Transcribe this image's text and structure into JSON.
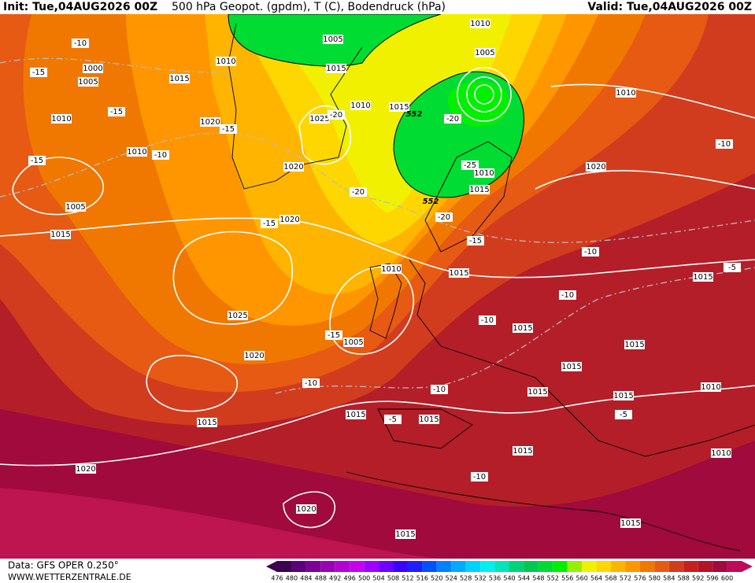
{
  "header": {
    "init": "Init: Tue,04AUG2026 00Z",
    "title": "500 hPa Geopot. (gpdm), T (C), Bodendruck (hPa)",
    "valid": "Valid: Tue,04AUG2026 00Z"
  },
  "footer": {
    "data": "Data: GFS OPER 0.250°",
    "website": "WWW.WETTERZENTRALE.DE"
  },
  "isobar_labels": [
    1010,
    1005,
    1010,
    1015,
    1005,
    1000,
    1005,
    1015,
    1010,
    1015,
    1010,
    1010,
    1020,
    1025,
    1010,
    1020,
    1010,
    1015,
    1020,
    1005,
    1015,
    1020,
    1010,
    1015,
    1015,
    1025,
    1005,
    1015,
    1015,
    1020,
    1015,
    1015,
    1015,
    1010,
    1015,
    1015,
    1015,
    1015,
    1010,
    1020,
    1020,
    1015,
    1015
  ],
  "temperature_labels": [
    -10,
    -15,
    -15,
    -15,
    -10,
    -15,
    -20,
    -20,
    -25,
    -20,
    -20,
    -15,
    -15,
    -10,
    -10,
    -10,
    -10,
    -15,
    -10,
    -10,
    -5,
    -5,
    -10,
    -5
  ],
  "geopotential_labels": [
    552,
    552
  ],
  "colorbar": {
    "labels": [
      476,
      480,
      484,
      488,
      492,
      496,
      500,
      504,
      508,
      512,
      516,
      520,
      524,
      528,
      532,
      536,
      540,
      544,
      548,
      552,
      556,
      560,
      564,
      568,
      572,
      576,
      580,
      584,
      588,
      592,
      596,
      600
    ],
    "colors": [
      "#3c0050",
      "#5a0078",
      "#7a0096",
      "#9a00b4",
      "#b400d2",
      "#c800f0",
      "#a000ff",
      "#6e00ff",
      "#3c00ff",
      "#1e1eff",
      "#0050ff",
      "#0082ff",
      "#00aaff",
      "#00d2ff",
      "#00f0f0",
      "#00e6b4",
      "#00d278",
      "#00c850",
      "#00dc32",
      "#00f000",
      "#96f000",
      "#f0f000",
      "#ffd700",
      "#ffb400",
      "#ff9600",
      "#f07800",
      "#e65a14",
      "#d23c1e",
      "#c81e1e",
      "#b41428",
      "#a00a3c",
      "#be0a5a"
    ]
  }
}
